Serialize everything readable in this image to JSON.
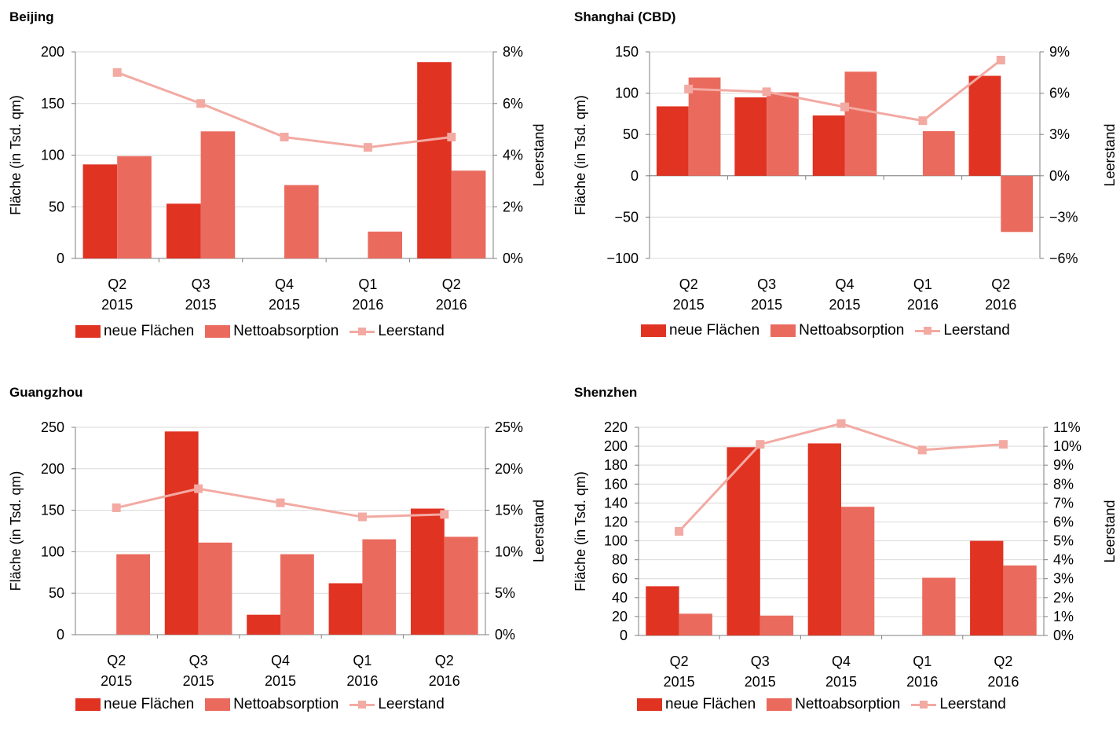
{
  "colors": {
    "new": "#e03322",
    "net": "#ea6b5e",
    "vacancy": "#f2aaa3",
    "grid": "#d9d9d9",
    "axis": "#7f7f7f"
  },
  "legend": {
    "new": "neue Flächen",
    "net": "Nettoabsorption",
    "vacancy": "Leerstand"
  },
  "chart_data": [
    {
      "type": "bar",
      "title": "Beijing",
      "categories": [
        "Q2\n2015",
        "Q3\n2015",
        "Q4\n2015",
        "Q1\n2016",
        "Q2\n2016"
      ],
      "series": [
        {
          "name": "neue Flächen",
          "values": [
            91,
            53,
            null,
            null,
            190
          ]
        },
        {
          "name": "Nettoabsorption",
          "values": [
            99,
            123,
            71,
            26,
            85
          ]
        },
        {
          "name": "Leerstand",
          "type": "line",
          "axis": "right",
          "values": [
            7.2,
            6.0,
            4.7,
            4.3,
            4.7
          ]
        }
      ],
      "ylabel": "Fläche (in Tsd. qm)",
      "y2label": "Leerstand",
      "ylim": [
        0,
        200
      ],
      "yticks": [
        0,
        50,
        100,
        150,
        200
      ],
      "yticklabels": [
        "0",
        "50",
        "100",
        "150",
        "200"
      ],
      "y2lim": [
        0,
        8
      ],
      "y2ticks": [
        0,
        2,
        4,
        6,
        8
      ],
      "y2ticklabels": [
        "0%",
        "2%",
        "4%",
        "6%",
        "8%"
      ],
      "grid": true,
      "legend_position": "bottom"
    },
    {
      "type": "bar",
      "title": "Shanghai (CBD)",
      "categories": [
        "Q2\n2015",
        "Q3\n2015",
        "Q4\n2015",
        "Q1\n2016",
        "Q2\n2016"
      ],
      "series": [
        {
          "name": "neue Flächen",
          "values": [
            84,
            95,
            73,
            null,
            121
          ]
        },
        {
          "name": "Nettoabsorption",
          "values": [
            119,
            101,
            126,
            54,
            -68
          ]
        },
        {
          "name": "Leerstand",
          "type": "line",
          "axis": "right",
          "values": [
            6.3,
            6.1,
            5.0,
            4.0,
            8.4
          ]
        }
      ],
      "ylabel": "Fläche (in Tsd. qm)",
      "y2label": "Leerstand",
      "ylim": [
        -100,
        150
      ],
      "yticks": [
        -100,
        -50,
        0,
        50,
        100,
        150
      ],
      "yticklabels": [
        "−100",
        "−50",
        "0",
        "50",
        "100",
        "150"
      ],
      "y2lim": [
        -6,
        9
      ],
      "y2ticks": [
        -6,
        -3,
        0,
        3,
        6,
        9
      ],
      "y2ticklabels": [
        "−6%",
        "−3%",
        "0%",
        "3%",
        "6%",
        "9%"
      ],
      "grid": true,
      "legend_position": "bottom"
    },
    {
      "type": "bar",
      "title": "Guangzhou",
      "categories": [
        "Q2\n2015",
        "Q3\n2015",
        "Q4\n2015",
        "Q1\n2016",
        "Q2\n2016"
      ],
      "series": [
        {
          "name": "neue Flächen",
          "values": [
            null,
            245,
            24,
            62,
            152
          ]
        },
        {
          "name": "Nettoabsorption",
          "values": [
            97,
            111,
            97,
            115,
            118
          ]
        },
        {
          "name": "Leerstand",
          "type": "line",
          "axis": "right",
          "values": [
            15.3,
            17.6,
            15.9,
            14.2,
            14.5
          ]
        }
      ],
      "ylabel": "Fläche (in Tsd. qm)",
      "y2label": "Leerstand",
      "ylim": [
        0,
        250
      ],
      "yticks": [
        0,
        50,
        100,
        150,
        200,
        250
      ],
      "yticklabels": [
        "0",
        "50",
        "100",
        "150",
        "200",
        "250"
      ],
      "y2lim": [
        0,
        25
      ],
      "y2ticks": [
        0,
        5,
        10,
        15,
        20,
        25
      ],
      "y2ticklabels": [
        "0%",
        "5%",
        "10%",
        "15%",
        "20%",
        "25%"
      ],
      "grid": true,
      "legend_position": "bottom"
    },
    {
      "type": "bar",
      "title": "Shenzhen",
      "categories": [
        "Q2\n2015",
        "Q3\n2015",
        "Q4\n2015",
        "Q1\n2016",
        "Q2\n2016"
      ],
      "series": [
        {
          "name": "neue Flächen",
          "values": [
            52,
            199,
            203,
            null,
            100
          ]
        },
        {
          "name": "Nettoabsorption",
          "values": [
            23,
            21,
            136,
            61,
            74
          ]
        },
        {
          "name": "Leerstand",
          "type": "line",
          "axis": "right",
          "values": [
            5.5,
            10.1,
            11.2,
            9.8,
            10.1
          ]
        }
      ],
      "ylabel": "Fläche (in Tsd. qm)",
      "y2label": "Leerstand",
      "ylim": [
        0,
        220
      ],
      "yticks": [
        0,
        20,
        40,
        60,
        80,
        100,
        120,
        140,
        160,
        180,
        200,
        220
      ],
      "yticklabels": [
        "0",
        "20",
        "40",
        "60",
        "80",
        "100",
        "120",
        "140",
        "160",
        "180",
        "200",
        "220"
      ],
      "y2lim": [
        0,
        11
      ],
      "y2ticks": [
        0,
        1,
        2,
        3,
        4,
        5,
        6,
        7,
        8,
        9,
        10,
        11
      ],
      "y2ticklabels": [
        "0%",
        "1%",
        "2%",
        "3%",
        "4%",
        "5%",
        "6%",
        "7%",
        "8%",
        "9%",
        "10%",
        "11%"
      ],
      "grid": true,
      "legend_position": "bottom"
    }
  ]
}
